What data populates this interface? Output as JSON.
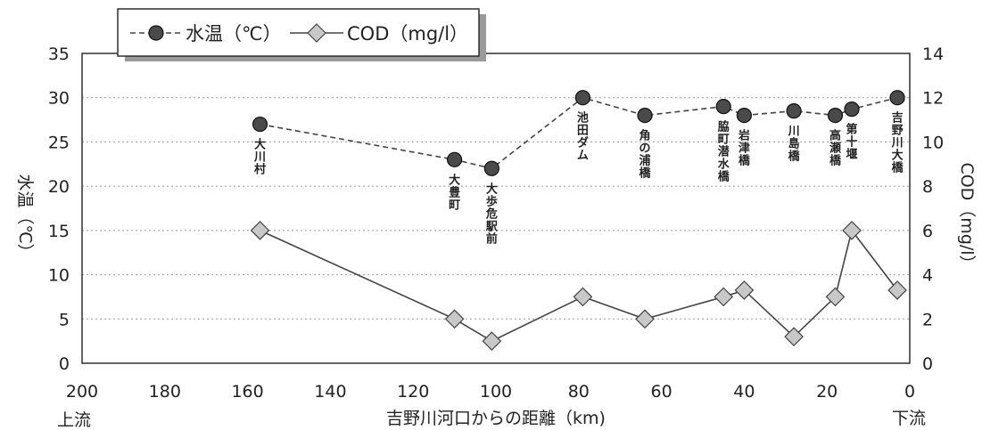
{
  "chart_data": {
    "type": "line",
    "title": "",
    "xlabel": "吉野川河口からの距離（km)",
    "x_end_labels": {
      "left": "上流",
      "right": "下流"
    },
    "x_reversed": true,
    "xlim": [
      200,
      0
    ],
    "xticks": [
      200,
      180,
      160,
      140,
      120,
      100,
      80,
      60,
      40,
      20,
      0
    ],
    "ylabel_left": "水温（℃）",
    "ylabel_right": "COD（mg/l）",
    "ylim_left": [
      0,
      35
    ],
    "yticks_left": [
      0,
      5,
      10,
      15,
      20,
      25,
      30,
      35
    ],
    "ylim_right": [
      0,
      14
    ],
    "yticks_right": [
      0,
      2,
      4,
      6,
      8,
      10,
      12,
      14
    ],
    "grid": true,
    "legend_position": "top-left",
    "series": [
      {
        "name": "水温（℃）",
        "axis": "left",
        "marker": "circle",
        "line_style": "dashed",
        "color": "#444444",
        "points": [
          {
            "x": 157,
            "y": 27
          },
          {
            "x": 110,
            "y": 23
          },
          {
            "x": 101,
            "y": 22
          },
          {
            "x": 79,
            "y": 30
          },
          {
            "x": 64,
            "y": 28
          },
          {
            "x": 45,
            "y": 29
          },
          {
            "x": 40,
            "y": 28
          },
          {
            "x": 28,
            "y": 28.5
          },
          {
            "x": 18,
            "y": 28
          },
          {
            "x": 14,
            "y": 28.7
          },
          {
            "x": 3,
            "y": 30
          }
        ]
      },
      {
        "name": "COD（mg/l）",
        "axis": "right",
        "marker": "diamond",
        "line_style": "solid",
        "color": "#c8c8c8",
        "points": [
          {
            "x": 157,
            "y": 6
          },
          {
            "x": 110,
            "y": 2
          },
          {
            "x": 101,
            "y": 1
          },
          {
            "x": 79,
            "y": 3
          },
          {
            "x": 64,
            "y": 2
          },
          {
            "x": 45,
            "y": 3
          },
          {
            "x": 40,
            "y": 3.3
          },
          {
            "x": 28,
            "y": 1.2
          },
          {
            "x": 18,
            "y": 3
          },
          {
            "x": 14,
            "y": 6
          },
          {
            "x": 3,
            "y": 3.3
          }
        ]
      }
    ],
    "annotations": [
      {
        "label": "大川村",
        "x": 157
      },
      {
        "label": "大豊町",
        "x": 110
      },
      {
        "label": "大歩危駅前",
        "x": 101
      },
      {
        "label": "池田ダム",
        "x": 79
      },
      {
        "label": "角の浦橋",
        "x": 64
      },
      {
        "label": "脇町潜水橋",
        "x": 45
      },
      {
        "label": "岩津橋",
        "x": 40
      },
      {
        "label": "川島橋",
        "x": 28
      },
      {
        "label": "高瀬橋",
        "x": 18
      },
      {
        "label": "第十堰",
        "x": 14
      },
      {
        "label": "吉野川大橋",
        "x": 3
      }
    ]
  }
}
